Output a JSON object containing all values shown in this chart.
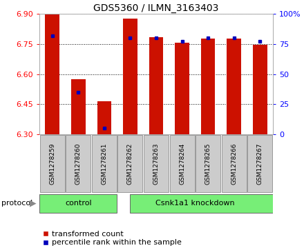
{
  "title": "GDS5360 / ILMN_3163403",
  "samples": [
    "GSM1278259",
    "GSM1278260",
    "GSM1278261",
    "GSM1278262",
    "GSM1278263",
    "GSM1278264",
    "GSM1278265",
    "GSM1278266",
    "GSM1278267"
  ],
  "transformed_count": [
    6.895,
    6.575,
    6.465,
    6.875,
    6.785,
    6.755,
    6.775,
    6.775,
    6.745
  ],
  "percentile_rank": [
    82,
    35,
    5,
    80,
    80,
    77,
    80,
    80,
    77
  ],
  "ylim_left": [
    6.3,
    6.9
  ],
  "ylim_right": [
    0,
    100
  ],
  "yticks_left": [
    6.3,
    6.45,
    6.6,
    6.75,
    6.9
  ],
  "yticks_right": [
    0,
    25,
    50,
    75,
    100
  ],
  "bar_color": "#cc1100",
  "dot_color": "#0000bb",
  "base_value": 6.3,
  "protocol_color": "#77ee77",
  "sample_box_color": "#cccccc",
  "background_color": "#ffffff",
  "legend_red_label": "transformed count",
  "legend_blue_label": "percentile rank within the sample",
  "control_count": 3,
  "total_samples": 9,
  "bar_width": 0.55
}
